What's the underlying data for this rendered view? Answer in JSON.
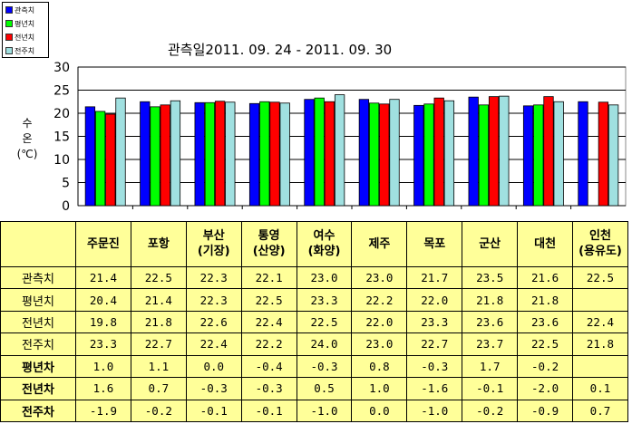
{
  "chart_data": {
    "type": "bar",
    "title": "관측일2011. 09. 24 -  2011. 09. 30",
    "ylabel_chars": [
      "수",
      "온",
      "(℃)"
    ],
    "ylim": [
      0,
      30
    ],
    "yticks": [
      "0",
      "5",
      "10",
      "15",
      "20",
      "25",
      "30"
    ],
    "grid": true,
    "legend_position": "top-left",
    "categories": [
      "주문진",
      "포항",
      "부산 (기장)",
      "통영 (산양)",
      "여수 (화양)",
      "제주",
      "목포",
      "군산",
      "대천",
      "인천 (용유도)"
    ],
    "series": [
      {
        "name": "관측치",
        "color": "#0000ff",
        "values": [
          21.4,
          22.5,
          22.3,
          22.1,
          23.0,
          23.0,
          21.7,
          23.5,
          21.6,
          22.5
        ]
      },
      {
        "name": "평년치",
        "color": "#00ff00",
        "values": [
          20.4,
          21.4,
          22.3,
          22.5,
          23.3,
          22.2,
          22.0,
          21.8,
          21.8,
          null
        ]
      },
      {
        "name": "전년치",
        "color": "#ff0000",
        "values": [
          19.8,
          21.8,
          22.6,
          22.4,
          22.5,
          22.0,
          23.3,
          23.6,
          23.6,
          22.4
        ]
      },
      {
        "name": "전주치",
        "color": "#a0e0e0",
        "values": [
          23.3,
          22.7,
          22.4,
          22.2,
          24.0,
          23.0,
          22.7,
          23.7,
          22.5,
          21.8
        ]
      }
    ]
  },
  "table": {
    "headers": [
      [
        "주문진"
      ],
      [
        "포항"
      ],
      [
        "부산",
        "(기장)"
      ],
      [
        "통영",
        "(산양)"
      ],
      [
        "여수",
        "(화양)"
      ],
      [
        "제주"
      ],
      [
        "목포"
      ],
      [
        "군산"
      ],
      [
        "대천"
      ],
      [
        "인천",
        "(용유도)"
      ]
    ],
    "rows": [
      {
        "label": "관측치",
        "bold": false,
        "cells": [
          "21.4",
          "22.5",
          "22.3",
          "22.1",
          "23.0",
          "23.0",
          "21.7",
          "23.5",
          "21.6",
          "22.5"
        ]
      },
      {
        "label": "평년치",
        "bold": false,
        "cells": [
          "20.4",
          "21.4",
          "22.3",
          "22.5",
          "23.3",
          "22.2",
          "22.0",
          "21.8",
          "21.8",
          ""
        ]
      },
      {
        "label": "전년치",
        "bold": false,
        "cells": [
          "19.8",
          "21.8",
          "22.6",
          "22.4",
          "22.5",
          "22.0",
          "23.3",
          "23.6",
          "23.6",
          "22.4"
        ]
      },
      {
        "label": "전주치",
        "bold": false,
        "cells": [
          "23.3",
          "22.7",
          "22.4",
          "22.2",
          "24.0",
          "23.0",
          "22.7",
          "23.7",
          "22.5",
          "21.8"
        ]
      },
      {
        "label": "평년차",
        "bold": true,
        "cells": [
          "1.0",
          "1.1",
          "0.0",
          "-0.4",
          "-0.3",
          "0.8",
          "-0.3",
          "1.7",
          "-0.2",
          ""
        ]
      },
      {
        "label": "전년차",
        "bold": true,
        "cells": [
          "1.6",
          "0.7",
          "-0.3",
          "-0.3",
          "0.5",
          "1.0",
          "-1.6",
          "-0.1",
          "-2.0",
          "0.1"
        ]
      },
      {
        "label": "전주차",
        "bold": true,
        "cells": [
          "-1.9",
          "-0.2",
          "-0.1",
          "-0.1",
          "-1.0",
          "0.0",
          "-1.0",
          "-0.2",
          "-0.9",
          "0.7"
        ]
      }
    ]
  }
}
